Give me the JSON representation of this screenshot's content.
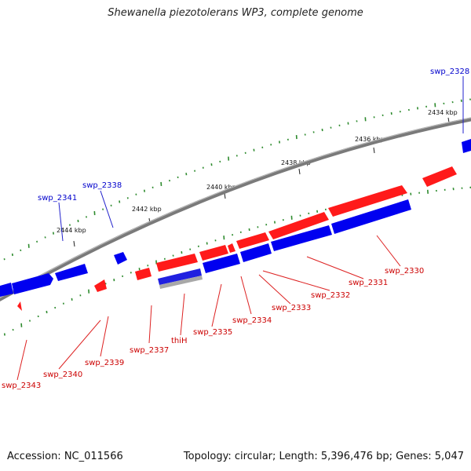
{
  "title": "Shewanella piezotolerans WP3, complete genome",
  "accession": "Accession: NC_011566",
  "summary": "Topology: circular; Length: 5,396,476 bp; Genes: 5,047",
  "colors": {
    "forward": "#ff0000",
    "reverse": "#0000ff",
    "backbone": "#808080",
    "gc_ticks": "#2e8b2e",
    "reverse_label": "#0000cc",
    "forward_label": "#cc0000",
    "rna": "#a0a0a0"
  },
  "scale_labels": [
    "2434 kbp",
    "2436 kbp",
    "2438 kbp",
    "2440 kbp",
    "2442 kbp",
    "2444 kbp"
  ],
  "reverse_labels": [
    "swp_2328",
    "swp_2338",
    "swp_2341"
  ],
  "forward_labels": [
    "swp_2330",
    "swp_2331",
    "swp_2332",
    "swp_2333",
    "swp_2334",
    "swp_2335",
    "thiH",
    "swp_2337",
    "swp_2339",
    "swp_2340",
    "swp_2343"
  ]
}
